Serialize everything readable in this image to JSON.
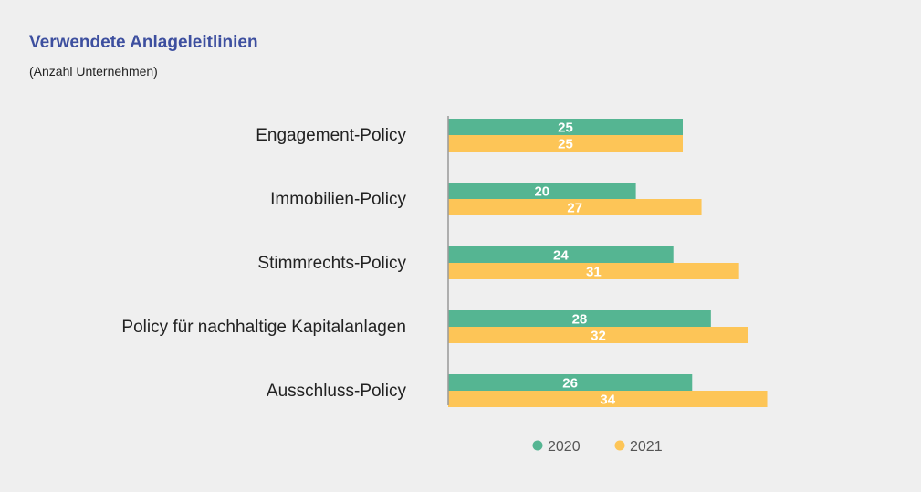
{
  "chart_data": {
    "type": "bar",
    "orientation": "horizontal",
    "title": "Verwendete Anlageleitlinien",
    "subtitle": "(Anzahl Unternehmen)",
    "categories": [
      "Engagement-Policy",
      "Immobilien-Policy",
      "Stimmrechts-Policy",
      "Policy für nachhaltige Kapitalanlagen",
      "Ausschluss-Policy"
    ],
    "series": [
      {
        "name": "2020",
        "color": "#55b592",
        "values": [
          25,
          20,
          24,
          28,
          26
        ]
      },
      {
        "name": "2021",
        "color": "#fdc557",
        "values": [
          25,
          27,
          31,
          32,
          34
        ]
      }
    ],
    "xlim": [
      0,
      34
    ],
    "grid": false,
    "data_labels": true,
    "legend_position": "bottom"
  }
}
